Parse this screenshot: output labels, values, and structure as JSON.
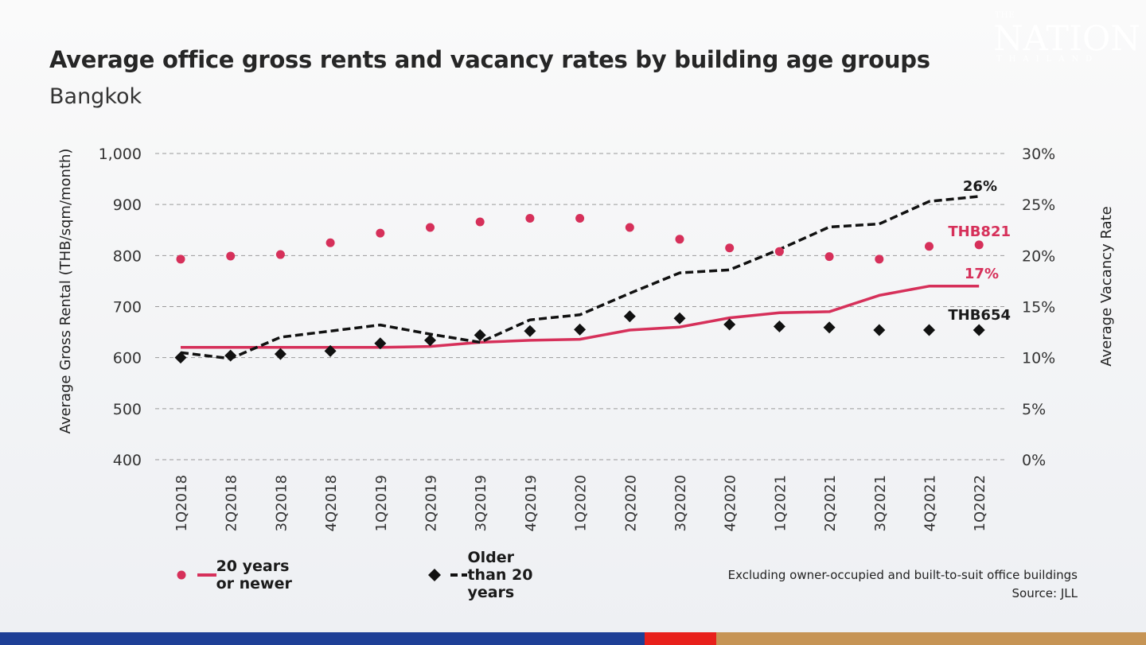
{
  "title": "Average office gross rents and vacancy rates by building age groups",
  "subtitle": "Bangkok",
  "logo": {
    "the": "THE",
    "nation": "NATION",
    "thailand": "THAILAND"
  },
  "chart_data": {
    "type": "line",
    "title": "Average office gross rents and vacancy rates by building age groups",
    "subtitle": "Bangkok",
    "categories": [
      "1Q2018",
      "2Q2018",
      "3Q2018",
      "4Q2018",
      "1Q2019",
      "2Q2019",
      "3Q2019",
      "4Q2019",
      "1Q2020",
      "2Q2020",
      "3Q2020",
      "4Q2020",
      "1Q2021",
      "2Q2021",
      "3Q2021",
      "4Q2021",
      "1Q2022"
    ],
    "y_left": {
      "label": "Average Gross Rental (THB/sqm/month)",
      "range": [
        400,
        1000
      ],
      "ticks": [
        "400",
        "500",
        "600",
        "700",
        "800",
        "900",
        "1,000"
      ]
    },
    "y_right": {
      "label": "Average Vacancy Rate",
      "range": [
        0,
        30
      ],
      "ticks": [
        "0%",
        "5%",
        "10%",
        "15%",
        "20%",
        "25%",
        "30%"
      ]
    },
    "grid": "horizontal dashed",
    "series": [
      {
        "group": "20 years or newer",
        "metric": "rent",
        "axis": "left",
        "mark": "circle",
        "color": "#d6305a",
        "values": [
          793,
          799,
          802,
          825,
          844,
          855,
          866,
          873,
          873,
          855,
          832,
          815,
          808,
          798,
          793,
          818,
          821
        ]
      },
      {
        "group": "20 years or newer",
        "metric": "vacancy",
        "axis": "right",
        "mark": "solid-line",
        "color": "#d6305a",
        "values": [
          11.0,
          11.0,
          11.0,
          11.0,
          11.0,
          11.1,
          11.5,
          11.7,
          11.8,
          12.7,
          13.0,
          13.9,
          14.4,
          14.5,
          16.1,
          17.0,
          17.0
        ]
      },
      {
        "group": "Older than 20 years",
        "metric": "rent",
        "axis": "left",
        "mark": "diamond",
        "color": "#111111",
        "values": [
          600,
          604,
          607,
          613,
          628,
          634,
          644,
          652,
          655,
          681,
          677,
          665,
          661,
          659,
          654,
          654,
          654
        ]
      },
      {
        "group": "Older than 20 years",
        "metric": "vacancy",
        "axis": "right",
        "mark": "dashed-line",
        "color": "#111111",
        "values": [
          10.5,
          9.9,
          12.0,
          12.6,
          13.2,
          12.3,
          11.5,
          13.7,
          14.2,
          16.3,
          18.3,
          18.6,
          20.6,
          22.8,
          23.1,
          25.3,
          25.8
        ]
      }
    ],
    "annotations": [
      {
        "text": "26%",
        "color": "#1a1a1a"
      },
      {
        "text": "THB821",
        "color": "#d6305a"
      },
      {
        "text": "17%",
        "color": "#d6305a"
      },
      {
        "text": "THB654",
        "color": "#1a1a1a"
      }
    ]
  },
  "legend": [
    {
      "label": "20 years or newer",
      "color": "#d6305a"
    },
    {
      "label": "Older than 20 years",
      "color": "#111111"
    }
  ],
  "note": "Excluding owner-occupied and built-to-suit office buildings",
  "source": "Source: JLL",
  "bottom_bar_colors": [
    "#1e3f96",
    "#e8201b",
    "#c69455"
  ]
}
